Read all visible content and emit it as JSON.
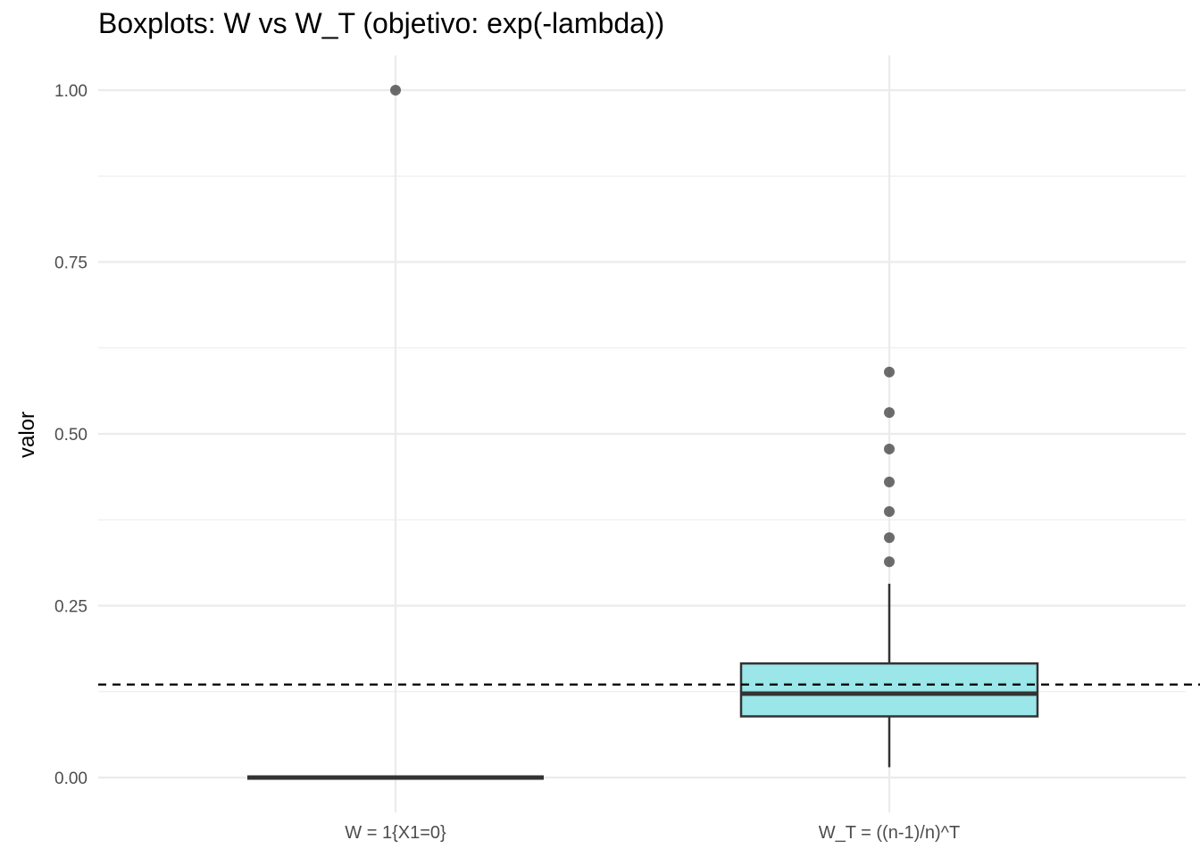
{
  "chart_data": {
    "type": "boxplot",
    "title": "Boxplots: W vs W_T (objetivo: exp(-lambda))",
    "xlabel": "",
    "ylabel": "valor",
    "ylim": [
      -0.05,
      1.05
    ],
    "y_ticks": [
      0.0,
      0.25,
      0.5,
      0.75,
      1.0
    ],
    "y_tick_labels": [
      "0.00",
      "0.25",
      "0.50",
      "0.75",
      "1.00"
    ],
    "reference_line": {
      "value": 0.1353,
      "style": "dashed",
      "label": "exp(-lambda)"
    },
    "groups": [
      {
        "name": "W = 1{X1=0}",
        "fill": "#ffffff",
        "whisker_low": 0.0,
        "q1": 0.0,
        "median": 0.0,
        "q3": 0.0,
        "whisker_high": 0.0,
        "outliers": [
          1.0
        ]
      },
      {
        "name": "W_T = ((n-1)/n)^T",
        "fill": "#9ae6e8",
        "whisker_low": 0.015,
        "q1": 0.089,
        "median": 0.122,
        "q3": 0.166,
        "whisker_high": 0.282,
        "outliers": [
          0.314,
          0.349,
          0.387,
          0.43,
          0.478,
          0.531,
          0.59
        ]
      }
    ],
    "colors": {
      "grid": "#ebebeb",
      "box_stroke": "#333333",
      "outlier": "#333333"
    }
  }
}
